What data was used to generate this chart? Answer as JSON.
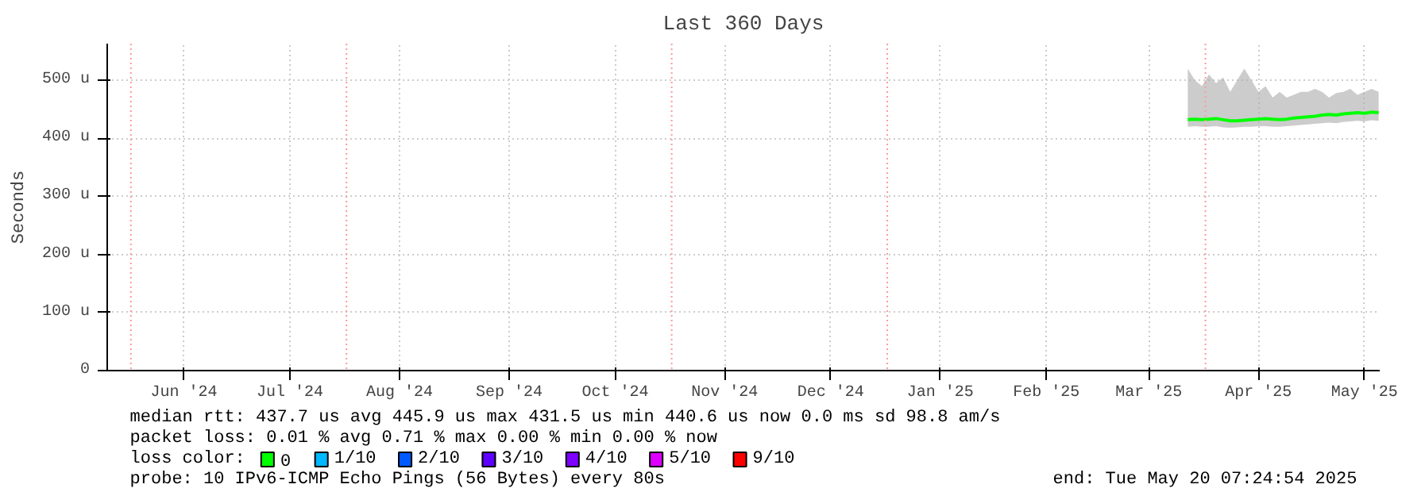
{
  "chart_data": {
    "type": "line",
    "title": "Last 360 Days",
    "ylabel": "Seconds",
    "legend_title": "loss color:",
    "xlim": [
      "2024-05-25T07:24",
      "2025-05-20T07:24"
    ],
    "xticks": [
      {
        "value": "2024-06-16",
        "label": "Jun '24"
      },
      {
        "value": "2024-07-16",
        "label": "Jul '24"
      },
      {
        "value": "2024-08-16",
        "label": "Aug '24"
      },
      {
        "value": "2024-09-16",
        "label": "Sep '24"
      },
      {
        "value": "2024-10-16",
        "label": "Oct '24"
      },
      {
        "value": "2024-11-16",
        "label": "Nov '24"
      },
      {
        "value": "2024-12-16",
        "label": "Dec '24"
      },
      {
        "value": "2025-01-16",
        "label": "Jan '25"
      },
      {
        "value": "2025-02-15",
        "label": "Feb '25"
      },
      {
        "value": "2025-03-16",
        "label": "Mar '25"
      },
      {
        "value": "2025-04-16",
        "label": "Apr '25"
      },
      {
        "value": "2025-05-16",
        "label": "May '25"
      }
    ],
    "ylim": [
      0,
      563
    ],
    "yticks": [
      0,
      {
        "value": 100,
        "label": "100 u"
      },
      {
        "value": 200,
        "label": "200 u"
      },
      {
        "value": 300,
        "label": "300 u"
      },
      {
        "value": 400,
        "label": "400 u"
      },
      {
        "value": 500,
        "label": "500 u"
      }
    ],
    "x": [
      "2025-03-27",
      "2025-03-29",
      "2025-03-31",
      "2025-04-02",
      "2025-04-04",
      "2025-04-06",
      "2025-04-08",
      "2025-04-10",
      "2025-04-12",
      "2025-04-14",
      "2025-04-16",
      "2025-04-18",
      "2025-04-20",
      "2025-04-22",
      "2025-04-24",
      "2025-04-26",
      "2025-04-28",
      "2025-04-30",
      "2025-05-02",
      "2025-05-04",
      "2025-05-06",
      "2025-05-08",
      "2025-05-10",
      "2025-05-12",
      "2025-05-14",
      "2025-05-16",
      "2025-05-18",
      "2025-05-20"
    ],
    "series": [
      {
        "name": "0",
        "color": "#00ff00",
        "values": [
          432,
          433,
          432,
          433,
          434,
          432,
          430,
          430,
          431,
          432,
          433,
          434,
          433,
          432,
          433,
          435,
          436,
          437,
          438,
          440,
          441,
          440,
          442,
          443,
          444,
          443,
          445,
          444
        ],
        "lower": [
          420,
          421,
          420,
          420,
          421,
          419,
          418,
          419,
          420,
          420,
          421,
          421,
          420,
          420,
          421,
          422,
          423,
          424,
          425,
          426,
          427,
          426,
          428,
          429,
          430,
          429,
          431,
          430
        ],
        "upper": [
          520,
          500,
          490,
          510,
          495,
          505,
          480,
          500,
          520,
          500,
          480,
          490,
          470,
          480,
          470,
          475,
          480,
          480,
          485,
          480,
          470,
          478,
          480,
          485,
          475,
          480,
          485,
          480
        ]
      },
      {
        "name": "1/10",
        "color": "#00b8ff",
        "values": [
          null,
          null,
          null,
          null,
          null,
          null,
          null,
          null,
          null,
          null,
          null,
          null,
          null,
          null,
          null,
          null,
          null,
          null,
          null,
          null,
          null,
          null,
          null,
          null,
          null,
          null,
          null,
          null
        ]
      },
      {
        "name": "2/10",
        "color": "#0059ff",
        "values": [
          null,
          null,
          null,
          null,
          null,
          null,
          null,
          null,
          null,
          null,
          null,
          null,
          null,
          null,
          null,
          null,
          null,
          null,
          null,
          null,
          null,
          null,
          null,
          null,
          null,
          null,
          null,
          null
        ]
      },
      {
        "name": "3/10",
        "color": "#5e00ff",
        "values": [
          null,
          null,
          null,
          null,
          null,
          null,
          null,
          null,
          null,
          null,
          null,
          null,
          null,
          null,
          null,
          null,
          null,
          null,
          null,
          null,
          null,
          null,
          null,
          null,
          null,
          null,
          null,
          null
        ]
      },
      {
        "name": "4/10",
        "color": "#7e00ff",
        "values": [
          null,
          null,
          null,
          null,
          null,
          null,
          null,
          null,
          null,
          null,
          null,
          null,
          null,
          null,
          null,
          null,
          null,
          null,
          null,
          null,
          null,
          null,
          null,
          null,
          null,
          null,
          null,
          null
        ]
      },
      {
        "name": "5/10",
        "color": "#dd00ff",
        "values": [
          null,
          null,
          null,
          null,
          null,
          null,
          null,
          null,
          null,
          null,
          null,
          null,
          null,
          null,
          null,
          null,
          null,
          null,
          null,
          null,
          null,
          null,
          null,
          null,
          null,
          null,
          null,
          null
        ]
      },
      {
        "name": "9/10",
        "color": "#ff0000",
        "values": [
          null,
          null,
          null,
          null,
          null,
          null,
          null,
          null,
          null,
          null,
          null,
          null,
          null,
          null,
          null,
          null,
          null,
          null,
          null,
          null,
          null,
          null,
          null,
          null,
          null,
          null,
          null,
          null
        ]
      }
    ],
    "ref_lines": [
      {
        "axis": "x",
        "value": "2024-06-01",
        "color": "#ff9999",
        "line_style": "dotted"
      },
      {
        "axis": "x",
        "value": "2024-08-01",
        "color": "#ff9999",
        "line_style": "dotted"
      },
      {
        "axis": "x",
        "value": "2024-11-01",
        "color": "#ff9999",
        "line_style": "dotted"
      },
      {
        "axis": "x",
        "value": "2025-01-01",
        "color": "#ff9999",
        "line_style": "dotted"
      },
      {
        "axis": "x",
        "value": "2025-04-01",
        "color": "#ff9999",
        "line_style": "dotted"
      }
    ],
    "annotations": [
      "median rtt:  437.7 us avg  445.9 us max  431.5 us min  440.6 us now  0.0 ms sd  98.8   am/s",
      "packet loss: 0.01 % avg  0.71 % max  0.00 % min  0.00 % now",
      "probe:       10 IPv6-ICMP Echo Pings (56 Bytes) every 80s",
      "end: Tue May 20 07:24:54 2025"
    ],
    "grid": true,
    "legend": "bottom",
    "marker": "none",
    "line_style": "solid"
  }
}
